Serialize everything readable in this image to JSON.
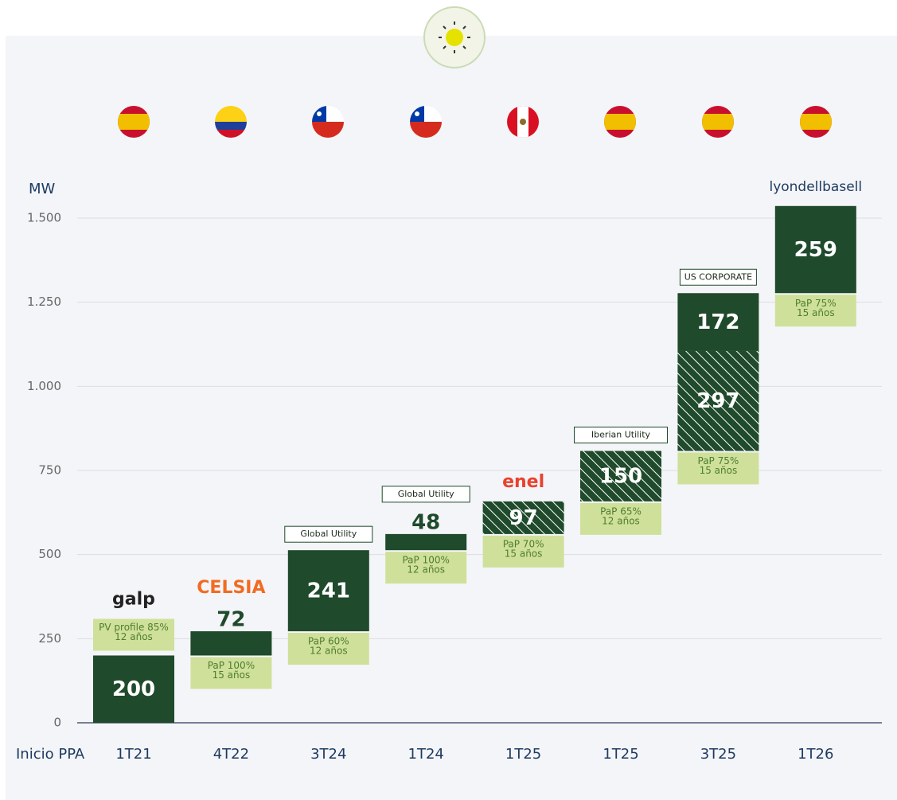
{
  "chart_data": {
    "type": "waterfall",
    "y_label": "MW",
    "x_label": "Inicio PPA",
    "ylim": [
      0,
      1500
    ],
    "yticks": [
      0,
      250,
      500,
      750,
      {
        "value": 1000,
        "label": "1.000"
      },
      {
        "value": 1250,
        "label": "1.250"
      },
      {
        "value": 1500,
        "label": "1.500"
      }
    ],
    "grid": true,
    "colors": {
      "solid": "#1f4a2b",
      "note": "#cfe09b",
      "note_text": "#4f7d2e"
    },
    "bars": [
      {
        "category": "1T21",
        "segments": [
          {
            "value": 200,
            "style": "solid"
          }
        ],
        "note": [
          "PV profile 85%",
          "12 años"
        ],
        "counterparty": {
          "text": "galp",
          "style": "logo",
          "color": "#222222"
        }
      },
      {
        "category": "4T22",
        "segments": [
          {
            "value": 72,
            "style": "solid"
          }
        ],
        "note": [
          "PaP 100%",
          "15 años"
        ],
        "counterparty": {
          "text": "CELSIA",
          "style": "logo",
          "color": "#f26b21"
        }
      },
      {
        "category": "3T24",
        "segments": [
          {
            "value": 241,
            "style": "solid"
          }
        ],
        "note": [
          "PaP 60%",
          "12 años"
        ],
        "counterparty": {
          "text": "Global Utility",
          "style": "box"
        }
      },
      {
        "category": "1T24",
        "segments": [
          {
            "value": 48,
            "style": "solid"
          }
        ],
        "note": [
          "PaP 100%",
          "12 años"
        ],
        "counterparty": {
          "text": "Global Utility",
          "style": "box"
        }
      },
      {
        "category": "1T25",
        "segments": [
          {
            "value": 97,
            "style": "hatched"
          }
        ],
        "note": [
          "PaP 70%",
          "15 años"
        ],
        "counterparty": {
          "text": "enel",
          "style": "logo",
          "color": "#e8422f"
        }
      },
      {
        "category": "1T25",
        "segments": [
          {
            "value": 150,
            "style": "hatched"
          }
        ],
        "note": [
          "PaP 65%",
          "12 años"
        ],
        "counterparty": {
          "text": "Iberian Utility",
          "style": "box"
        }
      },
      {
        "category": "3T25",
        "segments": [
          {
            "value": 297,
            "style": "hatched"
          },
          {
            "value": 172,
            "style": "solid"
          }
        ],
        "note": [
          "PaP 75%",
          "15 años"
        ],
        "counterparty": {
          "text": "US CORPORATE",
          "style": "box"
        }
      },
      {
        "category": "1T26",
        "segments": [
          {
            "value": 259,
            "style": "solid"
          }
        ],
        "note": [
          "PaP 75%",
          "15 años"
        ],
        "counterparty": {
          "text": "lyondellbasell",
          "style": "logo",
          "color": "#1d3a5f"
        }
      }
    ]
  }
}
